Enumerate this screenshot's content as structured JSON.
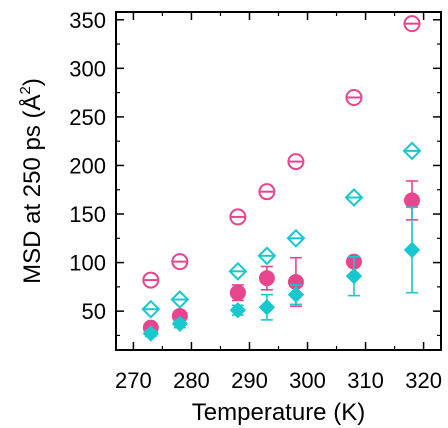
{
  "chart_data": {
    "type": "scatter",
    "xlabel": "Temperature (K)",
    "ylabel_prefix": "MSD at 250 ps (Å",
    "ylabel_sup": "2",
    "ylabel_suffix": ")",
    "xlim": [
      267,
      323
    ],
    "ylim": [
      10,
      358
    ],
    "xticks": [
      270,
      280,
      290,
      300,
      310,
      320
    ],
    "yticks": [
      50,
      100,
      150,
      200,
      250,
      300,
      350
    ],
    "grid": false,
    "legend": "none",
    "series": [
      {
        "marker": "open-circle-dash",
        "color": "#e8458f",
        "points": [
          {
            "x": 273,
            "y": 82
          },
          {
            "x": 278,
            "y": 101
          },
          {
            "x": 288,
            "y": 147
          },
          {
            "x": 293,
            "y": 173
          },
          {
            "x": 298,
            "y": 204
          },
          {
            "x": 308,
            "y": 270
          },
          {
            "x": 318,
            "y": 346
          }
        ]
      },
      {
        "marker": "open-diamond-dash",
        "color": "#19c7cf",
        "points": [
          {
            "x": 273,
            "y": 52
          },
          {
            "x": 278,
            "y": 62
          },
          {
            "x": 288,
            "y": 91
          },
          {
            "x": 293,
            "y": 107
          },
          {
            "x": 298,
            "y": 125
          },
          {
            "x": 308,
            "y": 167
          },
          {
            "x": 318,
            "y": 215
          }
        ]
      },
      {
        "marker": "filled-circle",
        "color": "#e8458f",
        "points": [
          {
            "x": 273,
            "y": 33,
            "err": 4
          },
          {
            "x": 278,
            "y": 45,
            "err": 5
          },
          {
            "x": 288,
            "y": 69,
            "err": 8
          },
          {
            "x": 293,
            "y": 84,
            "err": 12
          },
          {
            "x": 298,
            "y": 80,
            "err": 25
          },
          {
            "x": 308,
            "y": 101,
            "err": 5
          },
          {
            "x": 318,
            "y": 164,
            "err": 20
          }
        ]
      },
      {
        "marker": "filled-diamond",
        "color": "#19c7cf",
        "points": [
          {
            "x": 273,
            "y": 27,
            "err": 3
          },
          {
            "x": 278,
            "y": 37,
            "err": 4
          },
          {
            "x": 288,
            "y": 51,
            "err": 5
          },
          {
            "x": 293,
            "y": 54,
            "err": 13
          },
          {
            "x": 298,
            "y": 67,
            "err": 10
          },
          {
            "x": 308,
            "y": 86,
            "err": 20
          },
          {
            "x": 318,
            "y": 113,
            "err": 44
          }
        ]
      }
    ]
  }
}
